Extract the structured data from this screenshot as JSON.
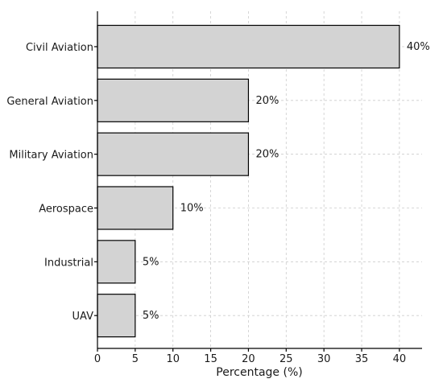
{
  "chart_data": {
    "type": "bar",
    "orientation": "horizontal",
    "categories": [
      "Civil Aviation",
      "General Aviation",
      "Military Aviation",
      "Aerospace",
      "Industrial",
      "UAV"
    ],
    "values": [
      40,
      20,
      20,
      10,
      5,
      5
    ],
    "data_labels": [
      "40%",
      "20%",
      "20%",
      "10%",
      "5%",
      "5%"
    ],
    "xlabel": "Percentage (%)",
    "ylabel": "",
    "title": "",
    "xlim": [
      0,
      43
    ],
    "xticks": [
      0,
      5,
      10,
      15,
      20,
      25,
      30,
      35,
      40
    ],
    "grid": true,
    "bar_color": "#d3d3d3",
    "edge_color": "#000000"
  }
}
